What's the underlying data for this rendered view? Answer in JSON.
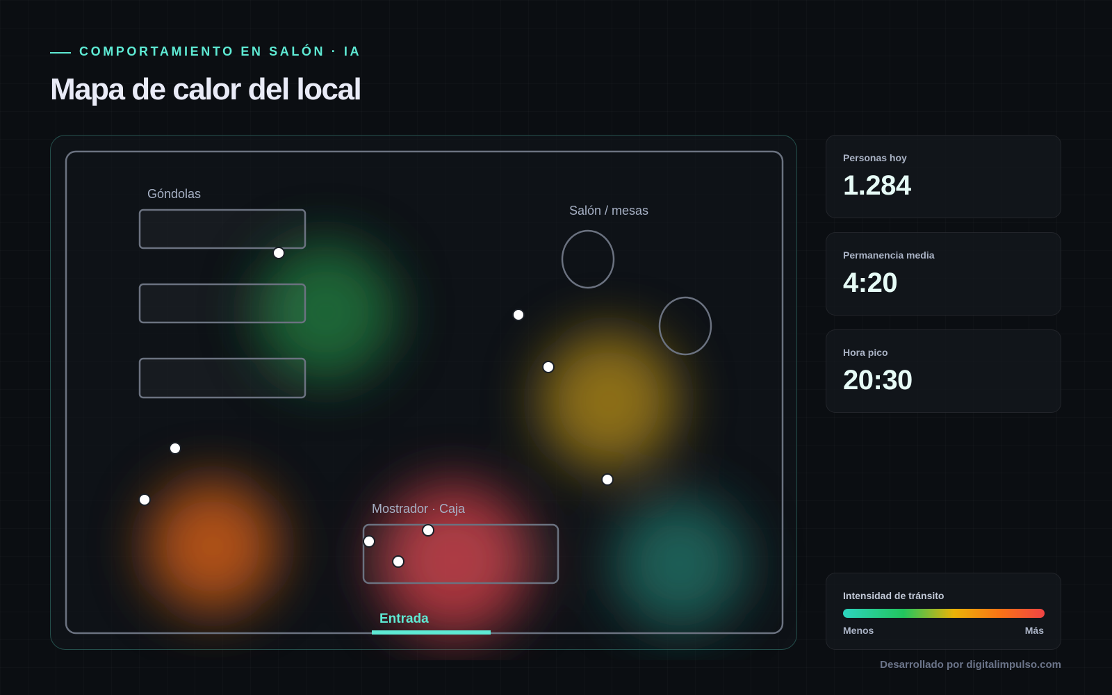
{
  "header": {
    "eyebrow": "COMPORTAMIENTO EN SALÓN · IA",
    "title": "Mapa de calor del local"
  },
  "map": {
    "zones": [
      "Góndolas",
      "Salón / mesas",
      "Mostrador · Caja"
    ],
    "entrance": "Entrada"
  },
  "stats": [
    {
      "label": "Personas hoy",
      "value": "1.284"
    },
    {
      "label": "Permanencia media",
      "value": "4:20"
    },
    {
      "label": "Hora pico",
      "value": "20:30"
    }
  ],
  "legend": {
    "title": "Intensidad de tránsito",
    "min": "Menos",
    "max": "Más"
  },
  "footer": "Desarrollado por digitalimpulso.com"
}
